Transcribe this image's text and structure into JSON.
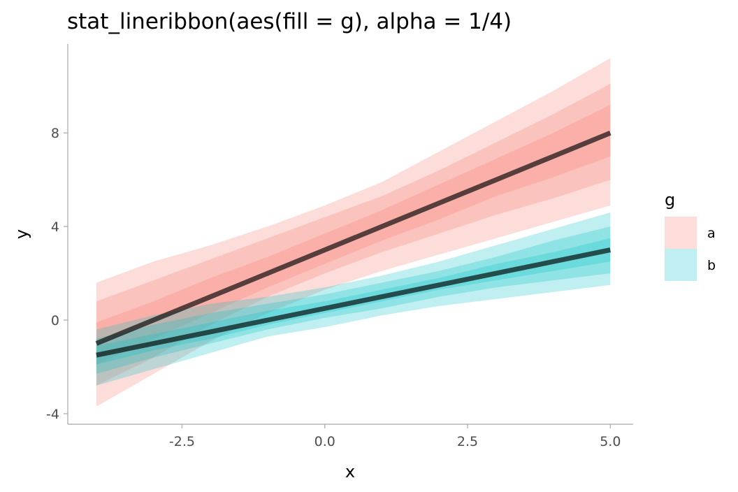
{
  "chart_data": {
    "type": "area",
    "title": "stat_lineribbon(aes(fill = g), alpha = 1/4)",
    "xlabel": "x",
    "ylabel": "y",
    "xlim": [
      -4.5,
      5.4
    ],
    "ylim": [
      -4.45,
      11.8
    ],
    "x_ticks": [
      -2.5,
      0.0,
      2.5,
      5.0
    ],
    "x_tick_labels": [
      "-2.5",
      "0.0",
      "2.5",
      "5.0"
    ],
    "y_ticks": [
      -4,
      0,
      4,
      8
    ],
    "y_tick_labels": [
      "-4",
      "0",
      "4",
      "8"
    ],
    "grid": false,
    "legend": {
      "title": "g",
      "position": "right",
      "entries": [
        {
          "label": "a",
          "color": "#f8766d"
        },
        {
          "label": "b",
          "color": "#00bfc4"
        }
      ]
    },
    "series": [
      {
        "name": "a",
        "color": "#f8766d",
        "x": [
          -4,
          -3,
          -2,
          -1,
          0,
          1,
          2,
          3,
          4,
          5
        ],
        "median": [
          -1.0,
          0.0,
          1.0,
          2.0,
          3.0,
          4.0,
          5.0,
          6.0,
          7.0,
          8.0
        ],
        "bands": [
          {
            "level": 0.95,
            "lower": [
              -3.7,
              -2.3,
              -0.9,
              0.3,
              1.3,
              2.1,
              2.8,
              3.5,
              4.2,
              4.9
            ],
            "upper": [
              1.6,
              2.5,
              3.2,
              4.0,
              4.9,
              5.9,
              7.2,
              8.5,
              9.8,
              11.2
            ]
          },
          {
            "level": 0.8,
            "lower": [
              -2.8,
              -1.6,
              -0.2,
              1.0,
              2.0,
              2.9,
              3.7,
              4.5,
              5.2,
              6.0
            ],
            "upper": [
              0.8,
              1.7,
              2.6,
              3.5,
              4.4,
              5.3,
              6.4,
              7.6,
              8.8,
              10.1
            ]
          },
          {
            "level": 0.5,
            "lower": [
              -1.9,
              -0.8,
              0.3,
              1.4,
              2.4,
              3.4,
              4.3,
              5.3,
              6.1,
              7.0
            ],
            "upper": [
              -0.1,
              0.8,
              1.8,
              2.7,
              3.7,
              4.7,
              5.8,
              6.9,
              8.0,
              9.2
            ]
          }
        ]
      },
      {
        "name": "b",
        "color": "#00bfc4",
        "x": [
          -4,
          -3,
          -2,
          -1,
          0,
          1,
          2,
          3,
          4,
          5
        ],
        "median": [
          -1.5,
          -1.0,
          -0.5,
          0.0,
          0.5,
          1.0,
          1.5,
          2.0,
          2.5,
          3.0
        ],
        "bands": [
          {
            "level": 0.95,
            "lower": [
              -2.8,
              -2.1,
              -1.4,
              -0.7,
              -0.3,
              0.2,
              0.6,
              0.9,
              1.2,
              1.5
            ],
            "upper": [
              -0.4,
              0.2,
              0.7,
              1.0,
              1.4,
              1.9,
              2.5,
              3.2,
              3.9,
              4.6
            ]
          },
          {
            "level": 0.8,
            "lower": [
              -2.3,
              -1.6,
              -1.0,
              -0.4,
              0.1,
              0.5,
              1.0,
              1.4,
              1.7,
              2.0
            ],
            "upper": [
              -0.8,
              -0.2,
              0.3,
              0.7,
              1.1,
              1.6,
              2.1,
              2.7,
              3.4,
              4.0
            ]
          },
          {
            "level": 0.5,
            "lower": [
              -1.9,
              -1.3,
              -0.8,
              -0.2,
              0.3,
              0.8,
              1.3,
              1.7,
              2.1,
              2.5
            ],
            "upper": [
              -1.1,
              -0.6,
              -0.1,
              0.4,
              0.8,
              1.3,
              1.8,
              2.4,
              2.9,
              3.5
            ]
          }
        ]
      }
    ],
    "line_color": "#000000"
  }
}
